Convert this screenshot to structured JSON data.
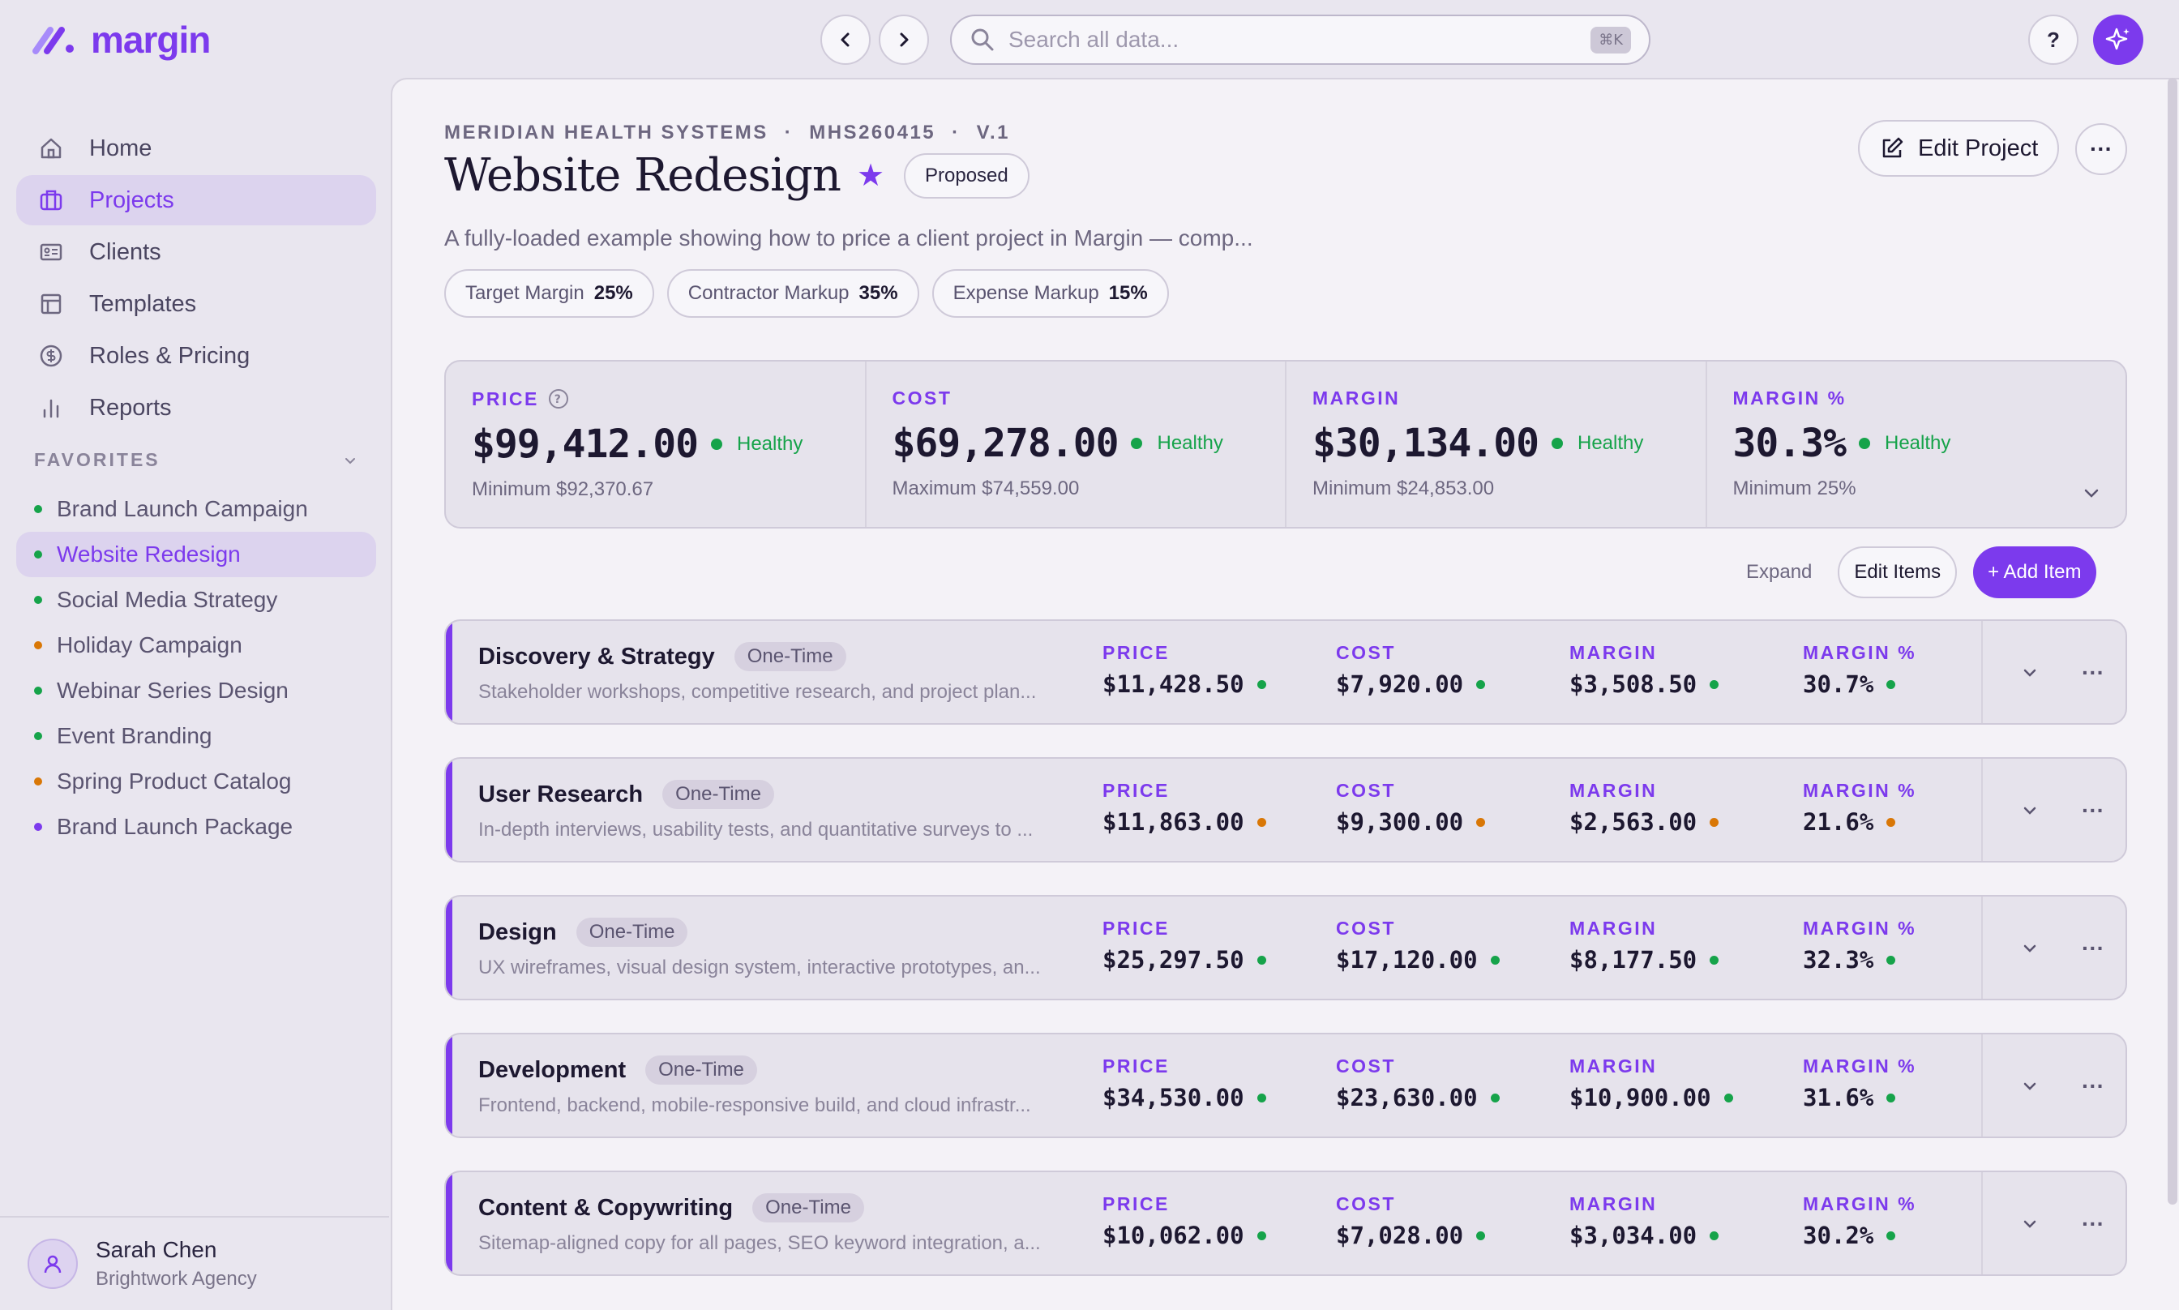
{
  "app": {
    "name": "margin"
  },
  "search": {
    "placeholder": "Search all data...",
    "shortcut": "⌘K"
  },
  "header": {
    "help_label": "?"
  },
  "sidebar": {
    "items": [
      {
        "label": "Home",
        "icon": "home-icon"
      },
      {
        "label": "Projects",
        "icon": "briefcase-icon",
        "active": true
      },
      {
        "label": "Clients",
        "icon": "id-card-icon"
      },
      {
        "label": "Templates",
        "icon": "template-icon"
      },
      {
        "label": "Roles & Pricing",
        "icon": "dollar-icon"
      },
      {
        "label": "Reports",
        "icon": "bar-chart-icon"
      }
    ],
    "favorites_heading": "FAVORITES",
    "favorites": [
      {
        "label": "Brand Launch Campaign",
        "color": "#16a34a"
      },
      {
        "label": "Website Redesign",
        "color": "#16a34a",
        "active": true
      },
      {
        "label": "Social Media Strategy",
        "color": "#16a34a"
      },
      {
        "label": "Holiday Campaign",
        "color": "#d97706"
      },
      {
        "label": "Webinar Series Design",
        "color": "#16a34a"
      },
      {
        "label": "Event Branding",
        "color": "#16a34a"
      },
      {
        "label": "Spring Product Catalog",
        "color": "#d97706"
      },
      {
        "label": "Brand Launch Package",
        "color": "#7c3aed"
      }
    ],
    "user": {
      "name": "Sarah Chen",
      "org": "Brightwork Agency"
    }
  },
  "project": {
    "client": "MERIDIAN HEALTH SYSTEMS",
    "code": "MHS260415",
    "version": "V.1",
    "title": "Website Redesign",
    "status": "Proposed",
    "description": "A fully-loaded example showing how to price a client project in Margin — comp...",
    "edit_label": "Edit Project",
    "chips": [
      {
        "label": "Target Margin",
        "value": "25%"
      },
      {
        "label": "Contractor Markup",
        "value": "35%"
      },
      {
        "label": "Expense Markup",
        "value": "15%"
      }
    ]
  },
  "summary": [
    {
      "label": "PRICE",
      "value": "$99,412.00",
      "status": "Healthy",
      "sub": "Minimum $92,370.67"
    },
    {
      "label": "COST",
      "value": "$69,278.00",
      "status": "Healthy",
      "sub": "Maximum $74,559.00"
    },
    {
      "label": "MARGIN",
      "value": "$30,134.00",
      "status": "Healthy",
      "sub": "Minimum $24,853.00"
    },
    {
      "label": "MARGIN %",
      "value": "30.3%",
      "status": "Healthy",
      "sub": "Minimum 25%"
    }
  ],
  "toolbar": {
    "expand": "Expand",
    "edit_items": "Edit Items",
    "add_item": "+ Add Item"
  },
  "metric_labels": {
    "price": "PRICE",
    "cost": "COST",
    "margin": "MARGIN",
    "margin_pct": "MARGIN %"
  },
  "items": [
    {
      "name": "Discovery & Strategy",
      "tag": "One-Time",
      "desc": "Stakeholder workshops, competitive research, and project plan...",
      "price": "$11,428.50",
      "cost": "$7,920.00",
      "margin": "$3,508.50",
      "margin_pct": "30.7%",
      "color": "#16a34a"
    },
    {
      "name": "User Research",
      "tag": "One-Time",
      "desc": "In-depth interviews, usability tests, and quantitative surveys to ...",
      "price": "$11,863.00",
      "cost": "$9,300.00",
      "margin": "$2,563.00",
      "margin_pct": "21.6%",
      "color": "#d97706"
    },
    {
      "name": "Design",
      "tag": "One-Time",
      "desc": "UX wireframes, visual design system, interactive prototypes, an...",
      "price": "$25,297.50",
      "cost": "$17,120.00",
      "margin": "$8,177.50",
      "margin_pct": "32.3%",
      "color": "#16a34a"
    },
    {
      "name": "Development",
      "tag": "One-Time",
      "desc": "Frontend, backend, mobile-responsive build, and cloud infrastr...",
      "price": "$34,530.00",
      "cost": "$23,630.00",
      "margin": "$10,900.00",
      "margin_pct": "31.6%",
      "color": "#16a34a"
    },
    {
      "name": "Content & Copywriting",
      "tag": "One-Time",
      "desc": "Sitemap-aligned copy for all pages, SEO keyword integration, a...",
      "price": "$10,062.00",
      "cost": "$7,028.00",
      "margin": "$3,034.00",
      "margin_pct": "30.2%",
      "color": "#16a34a"
    }
  ],
  "colors": {
    "accent": "#7c3aed",
    "healthy": "#16a34a",
    "warning": "#d97706"
  }
}
